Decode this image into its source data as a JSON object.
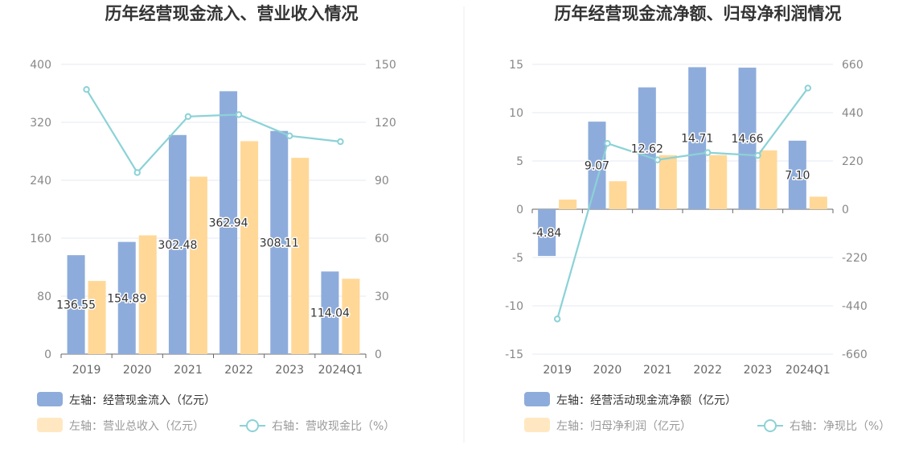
{
  "chart_data": [
    {
      "type": "bar",
      "title": "历年经营现金流入、营业收入情况",
      "categories": [
        "2019",
        "2020",
        "2021",
        "2022",
        "2023",
        "2024Q1"
      ],
      "left_axis": {
        "ticks": [
          "0",
          "80",
          "160",
          "240",
          "320",
          "400"
        ],
        "range": [
          0,
          400
        ]
      },
      "right_axis": {
        "ticks": [
          "0",
          "30",
          "60",
          "90",
          "120",
          "150"
        ],
        "range": [
          0,
          150
        ]
      },
      "series": [
        {
          "name": "左轴：经营现金流入（亿元）",
          "type": "bar",
          "axis": "left",
          "color": "#8eacdb",
          "values": [
            136.55,
            154.89,
            302.48,
            362.94,
            308.11,
            114.04
          ],
          "labels": [
            "136.55",
            "154.89",
            "302.48",
            "362.94",
            "308.11",
            "114.04"
          ]
        },
        {
          "name": "左轴：营业总收入（亿元）",
          "type": "bar",
          "axis": "left",
          "color": "#ffd898",
          "values": [
            101,
            164,
            245,
            294,
            271,
            104
          ]
        },
        {
          "name": "右轴：营收现金比（%）",
          "type": "line",
          "axis": "right",
          "color": "#8bd2d6",
          "values": [
            137,
            94,
            123,
            124,
            113,
            110
          ]
        }
      ],
      "grid": true,
      "legend_position": "bottom-left"
    },
    {
      "type": "bar",
      "title": "历年经营现金流净额、归母净利润情况",
      "categories": [
        "2019",
        "2020",
        "2021",
        "2022",
        "2023",
        "2024Q1"
      ],
      "left_axis": {
        "ticks": [
          "-15",
          "-10",
          "-5",
          "0",
          "5",
          "10",
          "15"
        ],
        "range": [
          -15,
          15
        ]
      },
      "right_axis": {
        "ticks": [
          "-660",
          "-440",
          "-220",
          "0",
          "220",
          "440",
          "660"
        ],
        "range": [
          -660,
          660
        ]
      },
      "series": [
        {
          "name": "左轴：经营活动现金流净额（亿元）",
          "type": "bar",
          "axis": "left",
          "color": "#8eacdb",
          "values": [
            -4.84,
            9.07,
            12.62,
            14.71,
            14.66,
            7.1
          ],
          "labels": [
            "-4.84",
            "9.07",
            "12.62",
            "14.71",
            "14.66",
            "7.10"
          ]
        },
        {
          "name": "左轴：归母净利润（亿元）",
          "type": "bar",
          "axis": "left",
          "color": "#ffd898",
          "values": [
            1.0,
            2.9,
            5.6,
            5.6,
            6.1,
            1.3
          ]
        },
        {
          "name": "右轴：净现比（%）",
          "type": "line",
          "axis": "right",
          "color": "#8bd2d6",
          "values": [
            -500,
            300,
            225,
            258,
            245,
            552
          ]
        }
      ],
      "grid": true,
      "legend_position": "bottom-left"
    }
  ]
}
